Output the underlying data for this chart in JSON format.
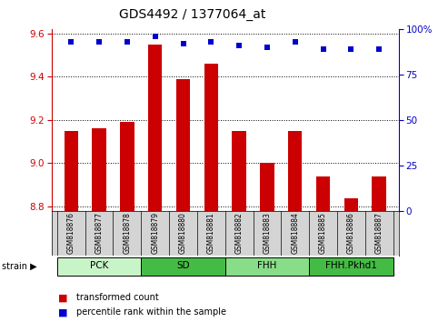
{
  "title": "GDS4492 / 1377064_at",
  "samples": [
    "GSM818876",
    "GSM818877",
    "GSM818878",
    "GSM818879",
    "GSM818880",
    "GSM818881",
    "GSM818882",
    "GSM818883",
    "GSM818884",
    "GSM818885",
    "GSM818886",
    "GSM818887"
  ],
  "red_values": [
    9.15,
    9.16,
    9.19,
    9.55,
    9.39,
    9.46,
    9.15,
    9.0,
    9.15,
    8.94,
    8.84,
    8.94
  ],
  "blue_values": [
    93,
    93,
    93,
    96,
    92,
    93,
    91,
    90,
    93,
    89,
    89,
    89
  ],
  "groups": [
    {
      "label": "PCK",
      "start": 0,
      "end": 3,
      "color": "#c8f5c8"
    },
    {
      "label": "SD",
      "start": 3,
      "end": 6,
      "color": "#44bb44"
    },
    {
      "label": "FHH",
      "start": 6,
      "end": 9,
      "color": "#88dd88"
    },
    {
      "label": "FHH.Pkhd1",
      "start": 9,
      "end": 12,
      "color": "#44bb44"
    }
  ],
  "ylim_left": [
    8.78,
    9.62
  ],
  "ylim_right": [
    0,
    100
  ],
  "yticks_left": [
    8.8,
    9.0,
    9.2,
    9.4,
    9.6
  ],
  "yticks_right": [
    0,
    25,
    50,
    75,
    100
  ],
  "left_color": "#cc0000",
  "right_color": "#0000cc",
  "bar_color": "#cc0000",
  "dot_color": "#0000cc",
  "bar_width": 0.5,
  "bg_color": "#ffffff",
  "legend_red": "transformed count",
  "legend_blue": "percentile rank within the sample"
}
